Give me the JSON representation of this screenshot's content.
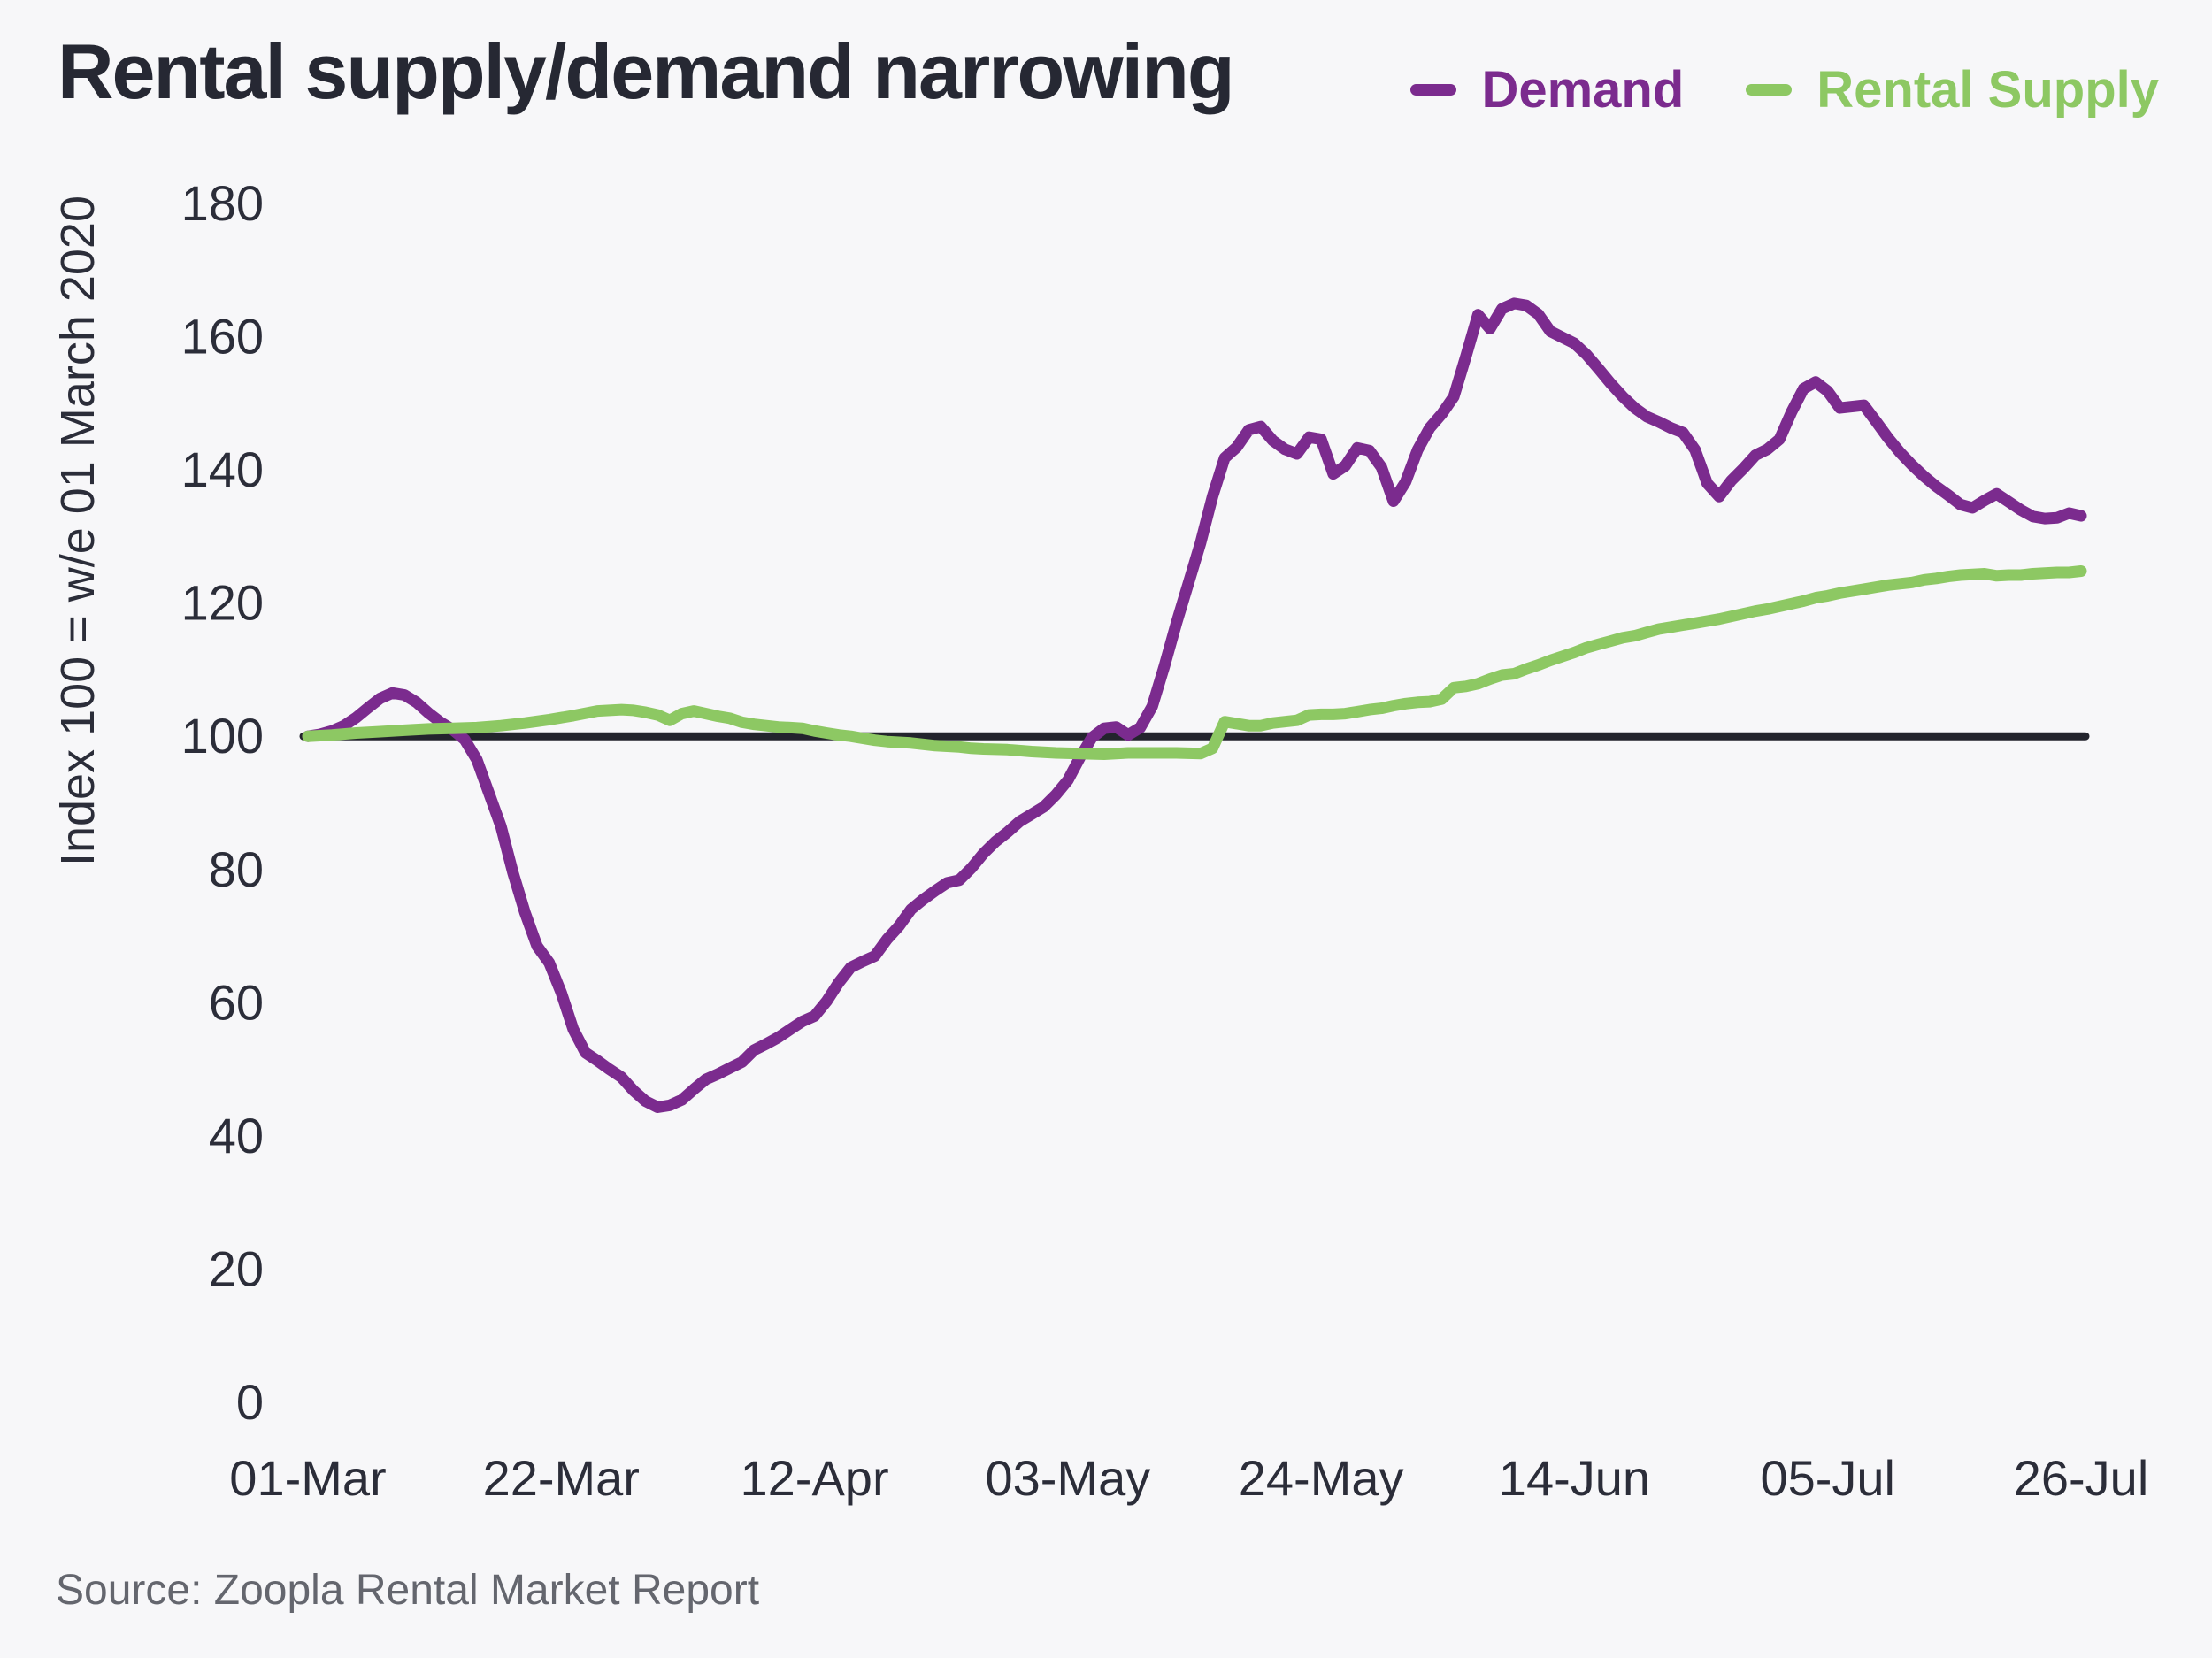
{
  "title": "Rental supply/demand narrowing",
  "source": "Source: Zoopla Rental Market Report",
  "colors": {
    "background": "#f7f7f9",
    "demand": "#7b2b8e",
    "supply": "#8dc863",
    "baseline": "#23242d",
    "text": "#2b2d39",
    "source_text": "#64666e"
  },
  "legend": {
    "items": [
      {
        "label": "Demand",
        "color": "#7b2b8e"
      },
      {
        "label": "Rental Supply",
        "color": "#8dc863"
      }
    ]
  },
  "chart_data": {
    "type": "line",
    "title": "Rental supply/demand narrowing",
    "ylabel": "Index 100 = w/e 01 March 2020",
    "xlabel": "",
    "ylim": [
      0,
      180
    ],
    "y_ticks": [
      0,
      20,
      40,
      60,
      80,
      100,
      120,
      140,
      160,
      180
    ],
    "x_unit": "days since 01-Mar-2020",
    "x_ticks": [
      {
        "d": 0,
        "label": "01-Mar"
      },
      {
        "d": 21,
        "label": "22-Mar"
      },
      {
        "d": 42,
        "label": "12-Apr"
      },
      {
        "d": 63,
        "label": "03-May"
      },
      {
        "d": 84,
        "label": "24-May"
      },
      {
        "d": 105,
        "label": "14-Jun"
      },
      {
        "d": 126,
        "label": "05-Jul"
      },
      {
        "d": 147,
        "label": "26-Jul"
      }
    ],
    "baseline_value": 100,
    "grid": false,
    "legend_position": "top-right",
    "series": [
      {
        "name": "Demand",
        "color": "#7b2b8e",
        "points": [
          [
            0,
            100
          ],
          [
            1,
            100.3
          ],
          [
            2,
            100.8
          ],
          [
            3,
            101.6
          ],
          [
            4,
            102.8
          ],
          [
            5,
            104.3
          ],
          [
            6,
            105.7
          ],
          [
            7,
            106.5
          ],
          [
            8,
            106.2
          ],
          [
            9,
            105.1
          ],
          [
            10,
            103.5
          ],
          [
            11,
            102.1
          ],
          [
            12,
            101.0
          ],
          [
            13,
            99.5
          ],
          [
            14,
            96.5
          ],
          [
            15,
            91.5
          ],
          [
            16,
            86.5
          ],
          [
            17,
            79.5
          ],
          [
            18,
            73.5
          ],
          [
            19,
            68.5
          ],
          [
            20,
            66.0
          ],
          [
            21,
            61.5
          ],
          [
            22,
            56.0
          ],
          [
            23,
            52.5
          ],
          [
            24,
            51.3
          ],
          [
            25,
            50.0
          ],
          [
            26,
            48.8
          ],
          [
            27,
            46.8
          ],
          [
            28,
            45.2
          ],
          [
            29,
            44.3
          ],
          [
            30,
            44.6
          ],
          [
            31,
            45.4
          ],
          [
            32,
            47.0
          ],
          [
            33,
            48.5
          ],
          [
            34,
            49.3
          ],
          [
            35,
            50.2
          ],
          [
            36,
            51.1
          ],
          [
            37,
            52.9
          ],
          [
            38,
            53.8
          ],
          [
            39,
            54.8
          ],
          [
            40,
            56.0
          ],
          [
            41,
            57.2
          ],
          [
            42,
            58.0
          ],
          [
            43,
            60.2
          ],
          [
            44,
            63.0
          ],
          [
            45,
            65.3
          ],
          [
            46,
            66.2
          ],
          [
            47,
            67.0
          ],
          [
            48,
            69.5
          ],
          [
            49,
            71.5
          ],
          [
            50,
            74.0
          ],
          [
            51,
            75.5
          ],
          [
            52,
            76.8
          ],
          [
            53,
            78.0
          ],
          [
            54,
            78.4
          ],
          [
            55,
            80.2
          ],
          [
            56,
            82.4
          ],
          [
            57,
            84.2
          ],
          [
            58,
            85.6
          ],
          [
            59,
            87.2
          ],
          [
            60,
            88.3
          ],
          [
            61,
            89.4
          ],
          [
            62,
            91.2
          ],
          [
            63,
            93.4
          ],
          [
            64,
            96.8
          ],
          [
            65,
            99.8
          ],
          [
            66,
            101.2
          ],
          [
            67,
            101.4
          ],
          [
            68,
            100.2
          ],
          [
            69,
            101.3
          ],
          [
            70,
            104.5
          ],
          [
            71,
            110.5
          ],
          [
            72,
            117.0
          ],
          [
            73,
            123.0
          ],
          [
            74,
            129.0
          ],
          [
            75,
            136.0
          ],
          [
            76,
            141.8
          ],
          [
            77,
            143.4
          ],
          [
            78,
            146.0
          ],
          [
            79,
            146.5
          ],
          [
            80,
            144.4
          ],
          [
            81,
            143.1
          ],
          [
            82,
            142.4
          ],
          [
            83,
            144.9
          ],
          [
            84,
            144.6
          ],
          [
            85,
            139.4
          ],
          [
            86,
            140.6
          ],
          [
            87,
            143.3
          ],
          [
            88,
            142.9
          ],
          [
            89,
            140.4
          ],
          [
            90,
            135.3
          ],
          [
            91,
            138.2
          ],
          [
            92,
            143.0
          ],
          [
            93,
            146.3
          ],
          [
            94,
            148.4
          ],
          [
            95,
            151.0
          ],
          [
            96,
            157.0
          ],
          [
            97,
            163.3
          ],
          [
            98,
            161.2
          ],
          [
            99,
            164.2
          ],
          [
            100,
            165.0
          ],
          [
            101,
            164.7
          ],
          [
            102,
            163.4
          ],
          [
            103,
            160.8
          ],
          [
            104,
            159.9
          ],
          [
            105,
            159.0
          ],
          [
            106,
            157.3
          ],
          [
            107,
            155.2
          ],
          [
            108,
            153.0
          ],
          [
            109,
            151.0
          ],
          [
            110,
            149.3
          ],
          [
            111,
            148.0
          ],
          [
            112,
            147.2
          ],
          [
            113,
            146.3
          ],
          [
            114,
            145.6
          ],
          [
            115,
            143.0
          ],
          [
            116,
            138.0
          ],
          [
            117,
            136.0
          ],
          [
            118,
            138.4
          ],
          [
            119,
            140.2
          ],
          [
            120,
            142.2
          ],
          [
            121,
            143.1
          ],
          [
            122,
            144.6
          ],
          [
            123,
            148.7
          ],
          [
            124,
            152.2
          ],
          [
            125,
            153.2
          ],
          [
            126,
            151.8
          ],
          [
            127,
            149.3
          ],
          [
            128,
            149.5
          ],
          [
            129,
            149.7
          ],
          [
            130,
            147.3
          ],
          [
            131,
            144.8
          ],
          [
            132,
            142.6
          ],
          [
            133,
            140.7
          ],
          [
            134,
            139.0
          ],
          [
            135,
            137.5
          ],
          [
            136,
            136.2
          ],
          [
            137,
            134.8
          ],
          [
            138,
            134.3
          ],
          [
            139,
            135.4
          ],
          [
            140,
            136.4
          ],
          [
            141,
            135.2
          ],
          [
            142,
            134.0
          ],
          [
            143,
            133.0
          ],
          [
            144,
            132.7
          ],
          [
            145,
            132.8
          ],
          [
            146,
            133.5
          ],
          [
            147,
            133.1
          ]
        ]
      },
      {
        "name": "Rental Supply",
        "color": "#8dc863",
        "points": [
          [
            0,
            100
          ],
          [
            2,
            100.2
          ],
          [
            4,
            100.5
          ],
          [
            6,
            100.7
          ],
          [
            8,
            100.9
          ],
          [
            10,
            101.1
          ],
          [
            12,
            101.2
          ],
          [
            14,
            101.3
          ],
          [
            16,
            101.6
          ],
          [
            18,
            102.0
          ],
          [
            20,
            102.5
          ],
          [
            22,
            103.1
          ],
          [
            24,
            103.8
          ],
          [
            26,
            104.0
          ],
          [
            27,
            103.9
          ],
          [
            28,
            103.6
          ],
          [
            29,
            103.2
          ],
          [
            30,
            102.4
          ],
          [
            31,
            103.4
          ],
          [
            32,
            103.8
          ],
          [
            33,
            103.4
          ],
          [
            34,
            103.0
          ],
          [
            35,
            102.7
          ],
          [
            36,
            102.1
          ],
          [
            37,
            101.8
          ],
          [
            38,
            101.6
          ],
          [
            39,
            101.4
          ],
          [
            40,
            101.3
          ],
          [
            41,
            101.2
          ],
          [
            42,
            100.8
          ],
          [
            43,
            100.5
          ],
          [
            44,
            100.2
          ],
          [
            45,
            100.0
          ],
          [
            46,
            99.7
          ],
          [
            47,
            99.4
          ],
          [
            48,
            99.2
          ],
          [
            49,
            99.1
          ],
          [
            50,
            99.0
          ],
          [
            51,
            98.8
          ],
          [
            52,
            98.6
          ],
          [
            53,
            98.5
          ],
          [
            54,
            98.4
          ],
          [
            55,
            98.2
          ],
          [
            56,
            98.1
          ],
          [
            58,
            98.0
          ],
          [
            60,
            97.7
          ],
          [
            62,
            97.5
          ],
          [
            64,
            97.4
          ],
          [
            66,
            97.3
          ],
          [
            68,
            97.5
          ],
          [
            70,
            97.5
          ],
          [
            72,
            97.5
          ],
          [
            74,
            97.4
          ],
          [
            75,
            98.2
          ],
          [
            76,
            102.2
          ],
          [
            77,
            101.9
          ],
          [
            78,
            101.6
          ],
          [
            79,
            101.6
          ],
          [
            80,
            102.0
          ],
          [
            81,
            102.2
          ],
          [
            82,
            102.4
          ],
          [
            83,
            103.2
          ],
          [
            84,
            103.3
          ],
          [
            85,
            103.3
          ],
          [
            86,
            103.4
          ],
          [
            87,
            103.7
          ],
          [
            88,
            104.0
          ],
          [
            89,
            104.2
          ],
          [
            90,
            104.6
          ],
          [
            91,
            104.9
          ],
          [
            92,
            105.1
          ],
          [
            93,
            105.2
          ],
          [
            94,
            105.6
          ],
          [
            95,
            107.3
          ],
          [
            96,
            107.5
          ],
          [
            97,
            107.9
          ],
          [
            98,
            108.6
          ],
          [
            99,
            109.2
          ],
          [
            100,
            109.4
          ],
          [
            101,
            110.1
          ],
          [
            102,
            110.7
          ],
          [
            103,
            111.4
          ],
          [
            104,
            112.0
          ],
          [
            105,
            112.6
          ],
          [
            106,
            113.3
          ],
          [
            107,
            113.8
          ],
          [
            108,
            114.3
          ],
          [
            109,
            114.8
          ],
          [
            110,
            115.1
          ],
          [
            111,
            115.6
          ],
          [
            112,
            116.1
          ],
          [
            113,
            116.4
          ],
          [
            114,
            116.7
          ],
          [
            115,
            117.0
          ],
          [
            116,
            117.3
          ],
          [
            117,
            117.6
          ],
          [
            118,
            118.0
          ],
          [
            119,
            118.4
          ],
          [
            120,
            118.8
          ],
          [
            121,
            119.1
          ],
          [
            122,
            119.5
          ],
          [
            123,
            119.9
          ],
          [
            124,
            120.3
          ],
          [
            125,
            120.8
          ],
          [
            126,
            121.1
          ],
          [
            127,
            121.5
          ],
          [
            128,
            121.8
          ],
          [
            129,
            122.1
          ],
          [
            130,
            122.4
          ],
          [
            131,
            122.7
          ],
          [
            132,
            122.9
          ],
          [
            133,
            123.1
          ],
          [
            134,
            123.5
          ],
          [
            135,
            123.7
          ],
          [
            136,
            124.0
          ],
          [
            137,
            124.2
          ],
          [
            138,
            124.3
          ],
          [
            139,
            124.4
          ],
          [
            140,
            124.1
          ],
          [
            141,
            124.2
          ],
          [
            142,
            124.2
          ],
          [
            143,
            124.4
          ],
          [
            144,
            124.5
          ],
          [
            145,
            124.6
          ],
          [
            146,
            124.6
          ],
          [
            147,
            124.8
          ]
        ]
      }
    ]
  }
}
